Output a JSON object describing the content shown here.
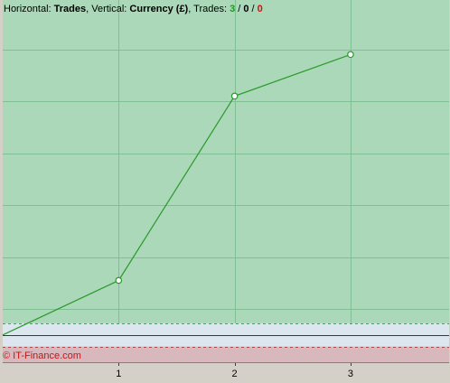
{
  "header": {
    "horizontal_label": "Horizontal:",
    "horizontal_value": "Trades",
    "vertical_label": ", Vertical:",
    "vertical_value": "Currency (£)",
    "trades_label": ", Trades:",
    "trades_win": "3",
    "trades_sep1": " / ",
    "trades_zero": "0",
    "trades_sep2": " / ",
    "trades_loss": "0"
  },
  "watermark": "© IT-Finance.com",
  "colors": {
    "profit_zone": "#aad8b8",
    "neutral_zone": "#dce6ee",
    "loss_zone": "#d8b8bc",
    "grid": "#7fbf93",
    "equity_line": "#2a9a2a",
    "baseline": "#2a2ab0",
    "frame": "#d4d0c8"
  },
  "chart_data": {
    "type": "line",
    "title": "",
    "xlabel": "Trades",
    "ylabel": "Currency (£)",
    "x_ticks": [
      "1",
      "2",
      "3"
    ],
    "xlim": [
      0,
      3.85
    ],
    "ylim": [
      -1.05,
      12.9
    ],
    "grid": true,
    "y_gridlines": [
      1,
      3,
      5,
      7,
      9,
      11
    ],
    "upper_band_level": 0.45,
    "lower_band_level": -0.45,
    "series": [
      {
        "x": [
          0,
          1,
          2,
          3
        ],
        "y": [
          0,
          2.1,
          9.2,
          10.8
        ]
      }
    ]
  }
}
